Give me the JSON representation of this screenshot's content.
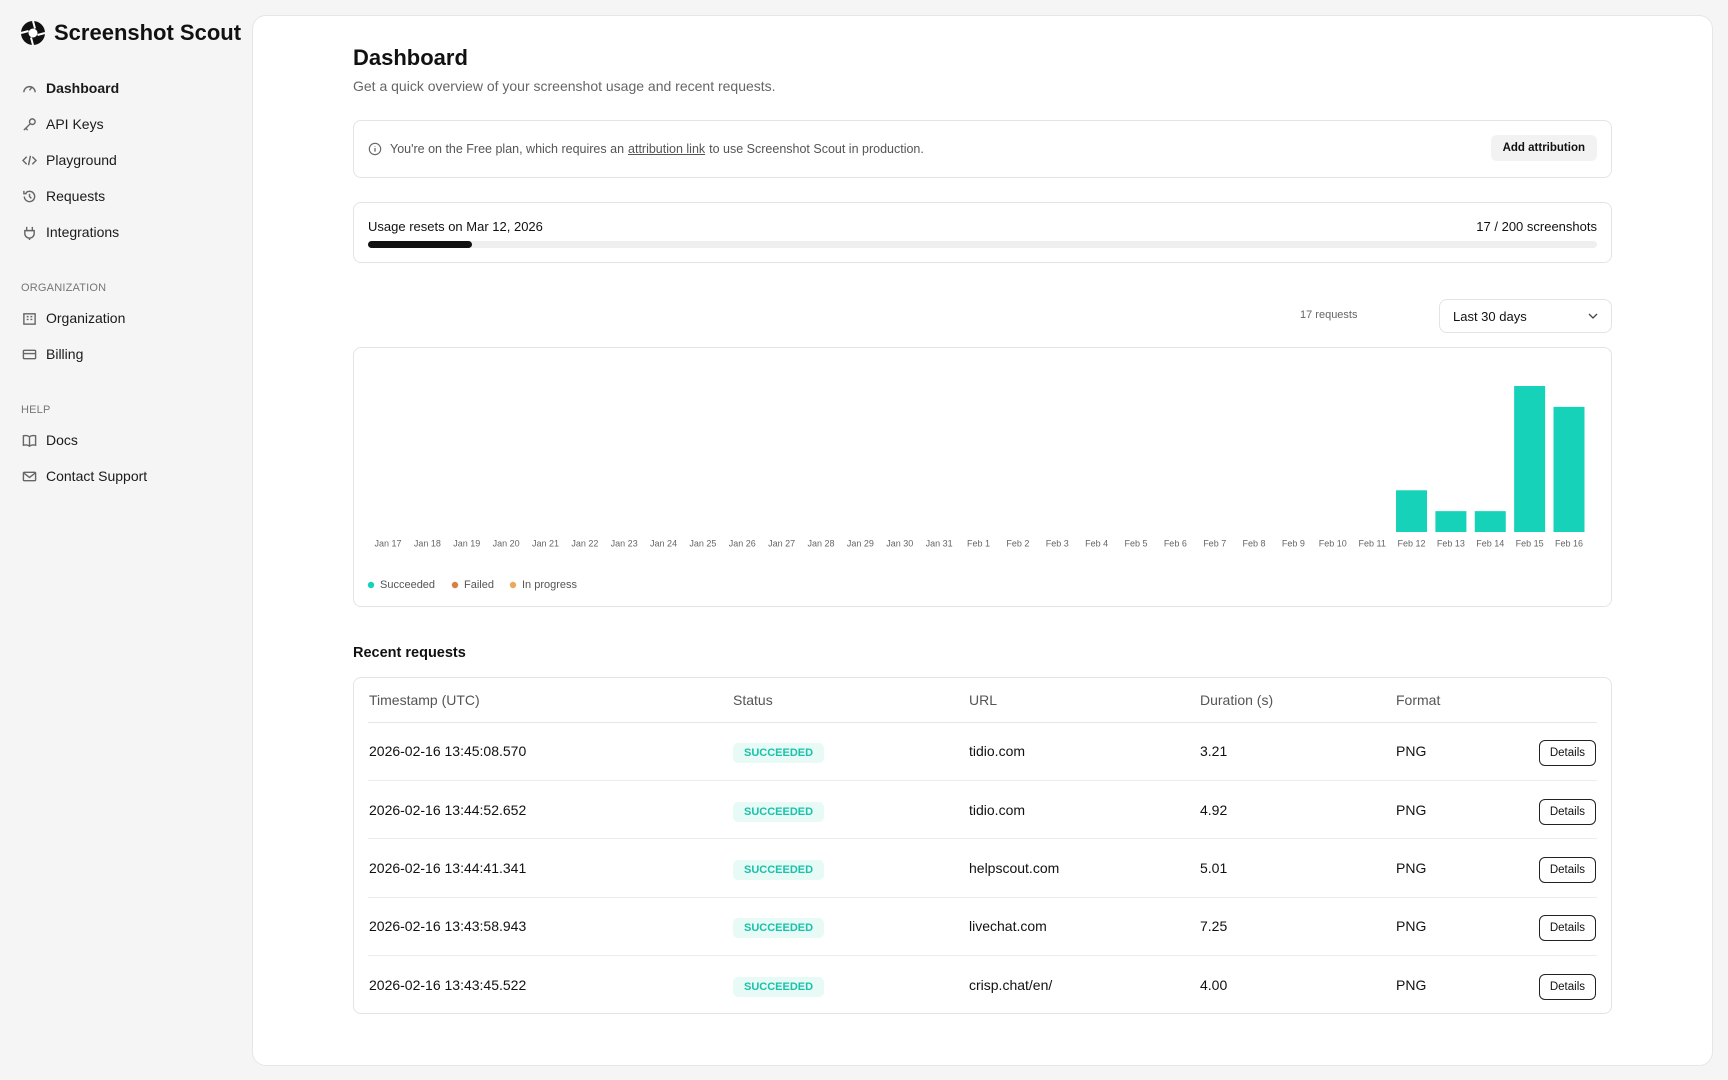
{
  "sidebar": {
    "brand": "Screenshot Scout",
    "nav": [
      "Dashboard",
      "API Keys",
      "Playground",
      "Requests",
      "Integrations"
    ],
    "organization_heading": "ORGANIZATION",
    "organization_nav": [
      "Organization",
      "Billing"
    ],
    "help_heading": "HELP",
    "help_nav": [
      "Docs",
      "Contact Support"
    ]
  },
  "header": {
    "title": "Dashboard",
    "subtitle": "Get a quick overview of your screenshot usage and recent requests."
  },
  "notice": {
    "text_before": "You're on the Free plan, which requires an",
    "link": "attribution link",
    "text_after": "to use Screenshot Scout in production.",
    "button": "Add attribution"
  },
  "usage": {
    "reset_text": "Usage resets on Mar 12, 2026",
    "label": "17 / 200 screenshots",
    "used": 17,
    "limit": 200
  },
  "chart_controls": {
    "count_label": "17 requests",
    "range": "Last 30 days"
  },
  "chart_data": {
    "type": "bar",
    "stacked": true,
    "categories": [
      "Jan 17",
      "Jan 18",
      "Jan 19",
      "Jan 20",
      "Jan 21",
      "Jan 22",
      "Jan 23",
      "Jan 24",
      "Jan 25",
      "Jan 26",
      "Jan 27",
      "Jan 28",
      "Jan 29",
      "Jan 30",
      "Jan 31",
      "Feb 1",
      "Feb 2",
      "Feb 3",
      "Feb 4",
      "Feb 5",
      "Feb 6",
      "Feb 7",
      "Feb 8",
      "Feb 9",
      "Feb 10",
      "Feb 11",
      "Feb 12",
      "Feb 13",
      "Feb 14",
      "Feb 15",
      "Feb 16"
    ],
    "series": [
      {
        "name": "Succeeded",
        "color": "#16d2b8",
        "values": [
          0,
          0,
          0,
          0,
          0,
          0,
          0,
          0,
          0,
          0,
          0,
          0,
          0,
          0,
          0,
          0,
          0,
          0,
          0,
          0,
          0,
          0,
          0,
          0,
          0,
          0,
          2,
          1,
          1,
          7,
          6
        ]
      },
      {
        "name": "Failed",
        "color": "#d6813e",
        "values": [
          0,
          0,
          0,
          0,
          0,
          0,
          0,
          0,
          0,
          0,
          0,
          0,
          0,
          0,
          0,
          0,
          0,
          0,
          0,
          0,
          0,
          0,
          0,
          0,
          0,
          0,
          0,
          0,
          0,
          0,
          0
        ]
      },
      {
        "name": "In progress",
        "color": "#eaa95e",
        "values": [
          0,
          0,
          0,
          0,
          0,
          0,
          0,
          0,
          0,
          0,
          0,
          0,
          0,
          0,
          0,
          0,
          0,
          0,
          0,
          0,
          0,
          0,
          0,
          0,
          0,
          0,
          0,
          0,
          0,
          0,
          0
        ]
      }
    ]
  },
  "recent": {
    "title": "Recent requests",
    "columns": [
      "Timestamp (UTC)",
      "Status",
      "URL",
      "Duration (s)",
      "Format"
    ],
    "rows": [
      [
        "2026-02-16 13:45:08.570",
        "SUCCEEDED",
        "tidio.com",
        "3.21",
        "PNG",
        "Details"
      ],
      [
        "2026-02-16 13:44:52.652",
        "SUCCEEDED",
        "tidio.com",
        "4.92",
        "PNG",
        "Details"
      ],
      [
        "2026-02-16 13:44:41.341",
        "SUCCEEDED",
        "helpscout.com",
        "5.01",
        "PNG",
        "Details"
      ],
      [
        "2026-02-16 13:43:58.943",
        "SUCCEEDED",
        "livechat.com",
        "7.25",
        "PNG",
        "Details"
      ],
      [
        "2026-02-16 13:43:45.522",
        "SUCCEEDED",
        "crisp.chat/en/",
        "4.00",
        "PNG",
        "Details"
      ]
    ]
  }
}
